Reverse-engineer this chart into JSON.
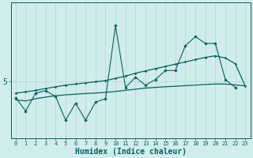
{
  "title": "",
  "xlabel": "Humidex (Indice chaleur)",
  "ylabel": "",
  "bg_color": "#d0ecec",
  "line_color": "#0a6060",
  "grid_color": "#b8d8d8",
  "x": [
    0,
    1,
    2,
    3,
    4,
    5,
    6,
    7,
    8,
    9,
    10,
    11,
    12,
    13,
    14,
    15,
    16,
    17,
    18,
    19,
    20,
    21,
    22,
    23
  ],
  "y_jagged": [
    4.3,
    3.7,
    4.5,
    4.6,
    4.35,
    3.3,
    4.05,
    3.3,
    4.1,
    4.25,
    7.5,
    4.75,
    5.2,
    4.85,
    5.1,
    5.5,
    5.5,
    6.6,
    7.0,
    6.7,
    6.7,
    5.1,
    4.75,
    null
  ],
  "y_upper": [
    4.5,
    4.55,
    4.62,
    4.7,
    4.78,
    4.85,
    4.9,
    4.95,
    5.0,
    5.05,
    5.15,
    5.25,
    5.38,
    5.48,
    5.58,
    5.68,
    5.78,
    5.88,
    5.98,
    6.08,
    6.15,
    6.05,
    5.8,
    4.8
  ],
  "y_lower": [
    4.2,
    4.15,
    4.25,
    4.32,
    4.38,
    4.42,
    4.45,
    4.48,
    4.5,
    4.53,
    4.57,
    4.62,
    4.67,
    4.72,
    4.75,
    4.78,
    4.8,
    4.83,
    4.85,
    4.88,
    4.9,
    4.9,
    4.86,
    4.82
  ],
  "ytick_val": 5.0,
  "ytick_label": "5",
  "ylim": [
    2.5,
    8.5
  ],
  "xlim": [
    -0.5,
    23.5
  ],
  "xlabel_fontsize": 7,
  "xtick_fontsize": 5,
  "ytick_fontsize": 7
}
